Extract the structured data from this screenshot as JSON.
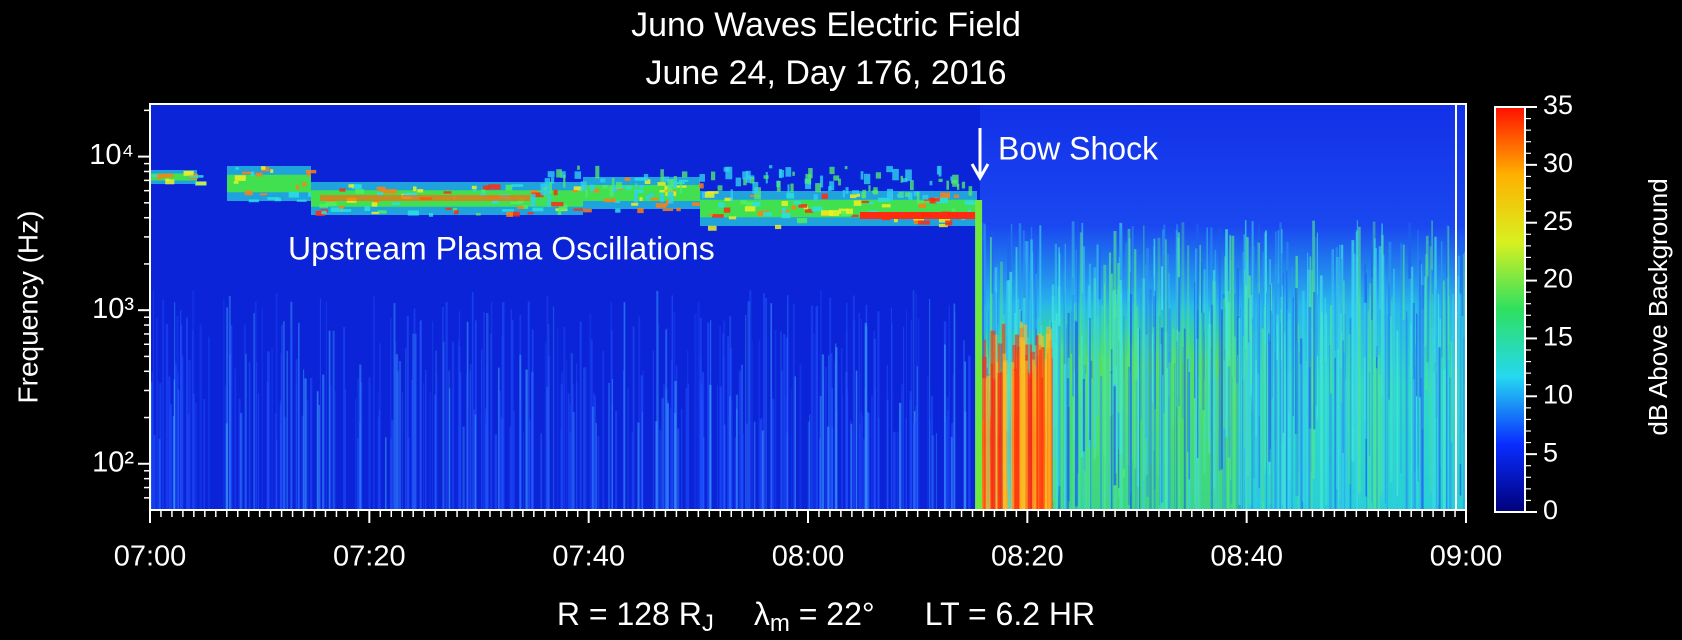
{
  "chart_data": {
    "type": "spectrogram",
    "title": "Juno Waves Electric Field",
    "subtitle": "June 24, Day 176, 2016",
    "ylabel": "Frequency (Hz)",
    "xlim": [
      420,
      540
    ],
    "xticks": [
      {
        "value": 420,
        "label": "07:00"
      },
      {
        "value": 440,
        "label": "07:20"
      },
      {
        "value": 460,
        "label": "07:40"
      },
      {
        "value": 480,
        "label": "08:00"
      },
      {
        "value": 500,
        "label": "08:20"
      },
      {
        "value": 520,
        "label": "08:40"
      },
      {
        "value": 540,
        "label": "09:00"
      }
    ],
    "ylim": [
      50,
      22000
    ],
    "yscale": "log",
    "yticks": [
      {
        "value": 100,
        "label": "10²"
      },
      {
        "value": 1000,
        "label": "10³"
      },
      {
        "value": 10000,
        "label": "10⁴"
      }
    ],
    "colorbar": {
      "label": "dB Above Background",
      "zlim": [
        0,
        35
      ],
      "zticks": [
        0,
        5,
        10,
        15,
        20,
        25,
        30,
        35
      ],
      "colors": [
        "#00007a",
        "#0a2cff",
        "#25d8f0",
        "#2ee060",
        "#d8f020",
        "#ffb000",
        "#ff1000"
      ]
    },
    "annotations": [
      {
        "text": "Bow Shock"
      },
      {
        "text": "Upstream Plasma Oscillations"
      }
    ],
    "footer": {
      "r": "R = 128 R",
      "r_sub": "J",
      "lambda": "λ",
      "lambda_sub": "m",
      "lambda_value": " = 22°",
      "lt": "LT = 6.2 HR"
    }
  }
}
